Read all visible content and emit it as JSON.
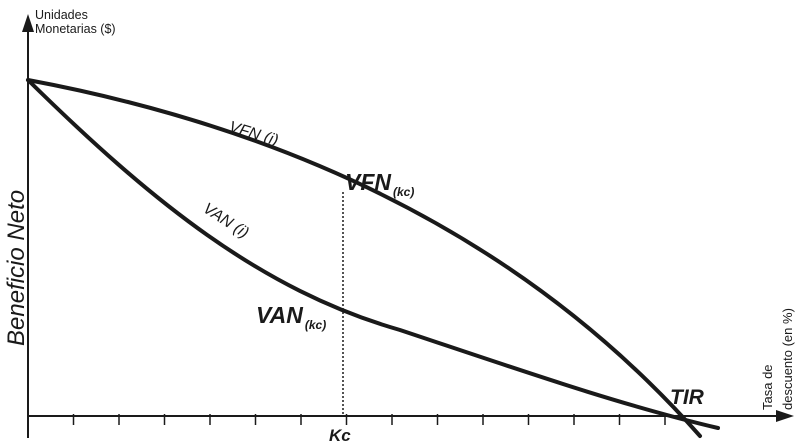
{
  "axes": {
    "y_label_top_line1": "Unidades",
    "y_label_top_line2": "Monetarias ($)",
    "y_label_side": "Beneficio Neto",
    "x_label_line1": "Tasa de",
    "x_label_line2": "descuento  (en %)"
  },
  "curves": {
    "vfn_curve_label": "VFN (i)",
    "van_curve_label": "VAN (i)"
  },
  "points": {
    "vfn_kc_main": "VFN",
    "vfn_kc_sub": "(kc)",
    "van_kc_main": "VAN",
    "van_kc_sub": "(kc)",
    "kc_label": "Kc",
    "tir_label": "TIR"
  },
  "colors": {
    "stroke": "#1a1a1a",
    "background": "#ffffff"
  }
}
